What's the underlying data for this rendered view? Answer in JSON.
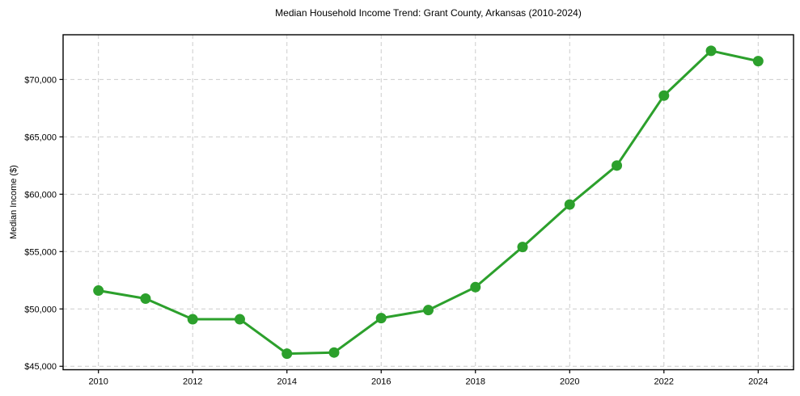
{
  "chart_data": {
    "type": "line",
    "title": "Median Household Income Trend: Grant County, Arkansas (2010-2024)",
    "xlabel": "",
    "ylabel": "Median Income ($)",
    "x": [
      2010,
      2011,
      2012,
      2013,
      2014,
      2015,
      2016,
      2017,
      2018,
      2019,
      2020,
      2021,
      2022,
      2023,
      2024
    ],
    "series": [
      {
        "name": "Median Household Income",
        "values": [
          51600,
          50900,
          49100,
          49100,
          46100,
          46200,
          49200,
          49900,
          51900,
          55400,
          59100,
          62500,
          68600,
          72500,
          71600
        ]
      }
    ],
    "xtick_values": [
      2010,
      2012,
      2014,
      2016,
      2018,
      2020,
      2022,
      2024
    ],
    "xtick_labels": [
      "2010",
      "2012",
      "2014",
      "2016",
      "2018",
      "2020",
      "2022",
      "2024"
    ],
    "ytick_values": [
      45000,
      50000,
      55000,
      60000,
      65000,
      70000
    ],
    "ytick_labels": [
      "$45,000",
      "$50,000",
      "$55,000",
      "$60,000",
      "$65,000",
      "$70,000"
    ],
    "xlim": [
      2009.25,
      2024.75
    ],
    "ylim": [
      44700,
      73900
    ],
    "grid": "dashed",
    "legend": "none",
    "line_color": "#2ca02c",
    "marker": "circle",
    "marker_color": "#2ca02c",
    "grid_color": "#cccccc",
    "spine_color": "#000000",
    "background": "#ffffff"
  }
}
